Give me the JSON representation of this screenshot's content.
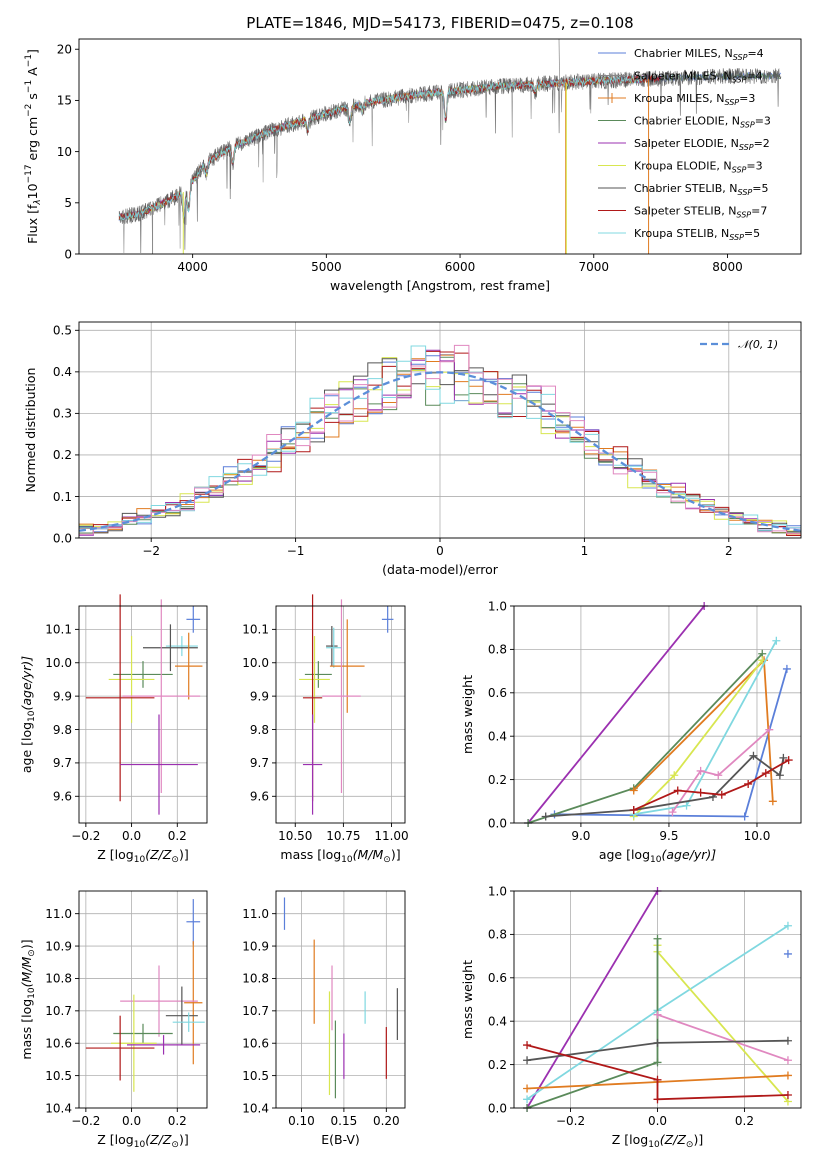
{
  "colors": {
    "chabrier_miles": "#5b7fd9",
    "salpeter_miles": "#888888",
    "kroupa_miles": "#e07b20",
    "chabrier_elodie": "#5a8a5a",
    "salpeter_elodie": "#9b30b0",
    "kroupa_elodie": "#d8e650",
    "chabrier_stelib": "#555555",
    "salpeter_stelib": "#b01818",
    "kroupa_stelib": "#80d8e0",
    "pink": "#e088c0",
    "normal": "#5b8fd9"
  },
  "chart_data": [
    {
      "id": "spectrum",
      "type": "line",
      "title": "PLATE=1846, MJD=54173, FIBERID=0475, z=0.108",
      "xlabel": "wavelength [Angstrom, rest frame]",
      "ylabel_parts": [
        "Flux [f",
        "λ",
        "10",
        "−17",
        " erg cm",
        "−2",
        " s",
        "−1",
        " A",
        "−1",
        "]"
      ],
      "xlim": [
        3150,
        8550
      ],
      "ylim": [
        0,
        21
      ],
      "xticks": [
        "4000",
        "5000",
        "6000",
        "7000",
        "8000"
      ],
      "xtick_values": [
        4000,
        5000,
        6000,
        7000,
        8000
      ],
      "yticks": [
        "0",
        "5",
        "10",
        "15",
        "20"
      ],
      "ytick_values": [
        0,
        5,
        10,
        15,
        20
      ],
      "grid": false,
      "legend_position": "top-right",
      "continuum_x": [
        3450,
        3600,
        3800,
        3950,
        4100,
        4300,
        4600,
        5000,
        5300,
        5700,
        6000,
        6300,
        6600,
        7000,
        7400,
        7800,
        8100,
        8300
      ],
      "continuum_y": [
        3.6,
        3.9,
        5.1,
        6.2,
        9.0,
        10.5,
        12.1,
        13.7,
        14.8,
        15.6,
        16.0,
        16.4,
        16.6,
        16.9,
        17.1,
        17.3,
        17.4,
        17.4
      ],
      "series": [
        {
          "name": "Chabrier MILES",
          "nssp": "4",
          "color_key": "chabrier_miles",
          "marker": false
        },
        {
          "name": "Salpeter MILES",
          "nssp": "4",
          "color_key": "salpeter_miles",
          "marker": false
        },
        {
          "name": "Kroupa MILES",
          "nssp": "3",
          "color_key": "kroupa_miles",
          "marker": true
        },
        {
          "name": "Chabrier ELODIE",
          "nssp": "3",
          "color_key": "chabrier_elodie",
          "marker": false
        },
        {
          "name": "Salpeter ELODIE",
          "nssp": "2",
          "color_key": "salpeter_elodie",
          "marker": false
        },
        {
          "name": "Kroupa ELODIE",
          "nssp": "3",
          "color_key": "kroupa_elodie",
          "marker": false
        },
        {
          "name": "Chabrier STELIB",
          "nssp": "5",
          "color_key": "chabrier_stelib",
          "marker": false
        },
        {
          "name": "Salpeter STELIB",
          "nssp": "7",
          "color_key": "salpeter_stelib",
          "marker": false
        },
        {
          "name": "Kroupa STELIB",
          "nssp": "5",
          "color_key": "kroupa_stelib",
          "marker": false
        }
      ]
    },
    {
      "id": "residuals",
      "type": "histogram",
      "xlabel": "(data-model)/error",
      "ylabel": "Normed distribution",
      "xlim": [
        -2.5,
        2.5
      ],
      "ylim": [
        0,
        0.52
      ],
      "xticks": [
        "−2",
        "−1",
        "0",
        "1",
        "2"
      ],
      "xtick_values": [
        -2,
        -1,
        0,
        1,
        2
      ],
      "yticks": [
        "0.0",
        "0.1",
        "0.2",
        "0.3",
        "0.4",
        "0.5"
      ],
      "ytick_values": [
        0,
        0.1,
        0.2,
        0.3,
        0.4,
        0.5
      ],
      "grid": true,
      "legend_position": "top-right",
      "legend": [
        {
          "label": "𝒩(0, 1)",
          "color_key": "normal"
        }
      ],
      "bin_width": 0.1,
      "hist_color_keys": [
        "chabrier_miles",
        "kroupa_miles",
        "chabrier_elodie",
        "salpeter_elodie",
        "kroupa_elodie",
        "chabrier_stelib",
        "salpeter_stelib",
        "kroupa_stelib",
        "pink"
      ]
    },
    {
      "id": "age-vs-z",
      "type": "errorbar",
      "xlabel_parts": [
        "Z [log",
        "10",
        "(Z/Z",
        "⊙",
        ")]"
      ],
      "ylabel_parts": [
        "age  [log",
        "10",
        "(age/yr)]"
      ],
      "xlim": [
        -0.23,
        0.33
      ],
      "ylim": [
        9.52,
        10.17
      ],
      "xticks": [
        "−0.2",
        "0.0",
        "0.2"
      ],
      "xtick_values": [
        -0.2,
        0.0,
        0.2
      ],
      "yticks": [
        "9.6",
        "9.7",
        "9.8",
        "9.9",
        "10.0",
        "10.1"
      ],
      "ytick_values": [
        9.6,
        9.7,
        9.8,
        9.9,
        10.0,
        10.1
      ],
      "grid": true,
      "points": [
        {
          "x": 0.27,
          "y": 10.13,
          "xerr": 0.03,
          "yerr": 0.04,
          "color_key": "chabrier_miles"
        },
        {
          "x": 0.22,
          "y": 10.05,
          "xerr": 0.07,
          "yerr": 0.03,
          "color_key": "kroupa_stelib"
        },
        {
          "x": 0.17,
          "y": 10.045,
          "xerr": 0.12,
          "yerr": 0.07,
          "color_key": "chabrier_stelib"
        },
        {
          "x": 0.25,
          "y": 9.99,
          "xerr": 0.06,
          "yerr": 0.1,
          "color_key": "kroupa_miles"
        },
        {
          "x": 0.05,
          "y": 9.965,
          "xerr": 0.13,
          "yerr": 0.04,
          "color_key": "chabrier_elodie"
        },
        {
          "x": 0.0,
          "y": 9.95,
          "xerr": 0.1,
          "yerr": 0.13,
          "color_key": "kroupa_elodie"
        },
        {
          "x": 0.13,
          "y": 9.9,
          "xerr": 0.17,
          "yerr": 0.29,
          "color_key": "pink"
        },
        {
          "x": -0.05,
          "y": 9.895,
          "xerr": 0.15,
          "yerr": 0.31,
          "color_key": "salpeter_stelib"
        },
        {
          "x": 0.12,
          "y": 9.695,
          "xerr": 0.17,
          "yerr": 0.15,
          "color_key": "salpeter_elodie"
        }
      ]
    },
    {
      "id": "age-vs-mass",
      "type": "errorbar",
      "xlabel_parts": [
        "mass [log",
        "10",
        "(M/M",
        "⊙",
        ")]"
      ],
      "xlim": [
        10.4,
        11.07
      ],
      "ylim": [
        9.52,
        10.17
      ],
      "xticks": [
        "10.50",
        "10.75",
        "11.00"
      ],
      "xtick_values": [
        10.5,
        10.75,
        11.0
      ],
      "yticks": [
        "9.6",
        "9.7",
        "9.8",
        "9.9",
        "10.0",
        "10.1"
      ],
      "ytick_values": [
        9.6,
        9.7,
        9.8,
        9.9,
        10.0,
        10.1
      ],
      "grid": true,
      "points": [
        {
          "x": 10.98,
          "y": 10.13,
          "xerr": 0.03,
          "yerr": 0.04,
          "color_key": "chabrier_miles"
        },
        {
          "x": 10.69,
          "y": 10.05,
          "xerr": 0.03,
          "yerr": 0.06,
          "color_key": "chabrier_stelib"
        },
        {
          "x": 10.7,
          "y": 10.045,
          "xerr": 0.04,
          "yerr": 0.06,
          "color_key": "kroupa_stelib"
        },
        {
          "x": 10.77,
          "y": 9.99,
          "xerr": 0.09,
          "yerr": 0.14,
          "color_key": "kroupa_miles"
        },
        {
          "x": 10.62,
          "y": 9.965,
          "xerr": 0.07,
          "yerr": 0.04,
          "color_key": "chabrier_elodie"
        },
        {
          "x": 10.6,
          "y": 9.95,
          "xerr": 0.08,
          "yerr": 0.13,
          "color_key": "kroupa_elodie"
        },
        {
          "x": 10.74,
          "y": 9.9,
          "xerr": 0.1,
          "yerr": 0.29,
          "color_key": "pink"
        },
        {
          "x": 10.59,
          "y": 9.895,
          "xerr": 0.05,
          "yerr": 0.31,
          "color_key": "salpeter_stelib"
        },
        {
          "x": 10.59,
          "y": 9.695,
          "xerr": 0.05,
          "yerr": 0.15,
          "color_key": "salpeter_elodie"
        }
      ]
    },
    {
      "id": "weight-vs-age",
      "type": "line",
      "xlabel_parts": [
        "age  [log",
        "10",
        "(age/yr)]"
      ],
      "ylabel": "mass weight",
      "xlim": [
        8.62,
        10.25
      ],
      "ylim": [
        0,
        1
      ],
      "xticks": [
        "9.0",
        "9.5",
        "10.0"
      ],
      "xtick_values": [
        9.0,
        9.5,
        10.0
      ],
      "yticks": [
        "0.0",
        "0.2",
        "0.4",
        "0.6",
        "0.8",
        "1.0"
      ],
      "ytick_values": [
        0,
        0.2,
        0.4,
        0.6,
        0.8,
        1.0
      ],
      "grid": true,
      "series": [
        {
          "color_key": "salpeter_elodie",
          "x": [
            8.7,
            9.7
          ],
          "y": [
            0.0,
            1.0
          ]
        },
        {
          "color_key": "chabrier_miles",
          "x": [
            8.85,
            9.93,
            10.17
          ],
          "y": [
            0.04,
            0.03,
            0.71
          ]
        },
        {
          "color_key": "chabrier_elodie",
          "x": [
            8.7,
            9.3,
            10.03
          ],
          "y": [
            0.0,
            0.16,
            0.78
          ]
        },
        {
          "color_key": "kroupa_miles",
          "x": [
            9.3,
            10.04,
            10.09
          ],
          "y": [
            0.15,
            0.75,
            0.1
          ]
        },
        {
          "color_key": "kroupa_elodie",
          "x": [
            9.3,
            9.53,
            10.03
          ],
          "y": [
            0.03,
            0.22,
            0.75
          ]
        },
        {
          "color_key": "kroupa_stelib",
          "x": [
            9.3,
            9.6,
            10.11
          ],
          "y": [
            0.04,
            0.08,
            0.84
          ]
        },
        {
          "color_key": "pink",
          "x": [
            9.52,
            9.68,
            9.78,
            10.07
          ],
          "y": [
            0.05,
            0.24,
            0.22,
            0.43
          ]
        },
        {
          "color_key": "chabrier_stelib",
          "x": [
            8.8,
            9.3,
            9.75,
            9.98,
            10.13,
            10.15
          ],
          "y": [
            0.03,
            0.06,
            0.12,
            0.31,
            0.22,
            0.3
          ]
        },
        {
          "color_key": "salpeter_stelib",
          "x": [
            9.3,
            9.55,
            9.68,
            9.8,
            9.95,
            10.05,
            10.18
          ],
          "y": [
            0.06,
            0.15,
            0.14,
            0.13,
            0.18,
            0.23,
            0.29
          ]
        }
      ]
    },
    {
      "id": "mass-vs-z",
      "type": "errorbar",
      "xlabel_parts": [
        "Z [log",
        "10",
        "(Z/Z",
        "⊙",
        ")]"
      ],
      "ylabel_parts": [
        "mass [log",
        "10",
        "(M/M",
        "⊙",
        ")]"
      ],
      "xlim": [
        -0.23,
        0.33
      ],
      "ylim": [
        10.4,
        11.07
      ],
      "xticks": [
        "−0.2",
        "0.0",
        "0.2"
      ],
      "xtick_values": [
        -0.2,
        0.0,
        0.2
      ],
      "yticks": [
        "10.4",
        "10.5",
        "10.6",
        "10.7",
        "10.8",
        "10.9",
        "11.0"
      ],
      "ytick_values": [
        10.4,
        10.5,
        10.6,
        10.7,
        10.8,
        10.9,
        11.0
      ],
      "grid": true,
      "points": [
        {
          "x": 0.27,
          "y": 10.975,
          "xerr": 0.03,
          "yerr": 0.07,
          "color_key": "chabrier_miles"
        },
        {
          "x": 0.27,
          "y": 10.725,
          "xerr": 0.04,
          "yerr": 0.19,
          "color_key": "kroupa_miles"
        },
        {
          "x": 0.12,
          "y": 10.73,
          "xerr": 0.17,
          "yerr": 0.11,
          "color_key": "pink"
        },
        {
          "x": 0.22,
          "y": 10.685,
          "xerr": 0.07,
          "yerr": 0.09,
          "color_key": "chabrier_stelib"
        },
        {
          "x": 0.25,
          "y": 10.665,
          "xerr": 0.07,
          "yerr": 0.03,
          "color_key": "kroupa_stelib"
        },
        {
          "x": 0.05,
          "y": 10.63,
          "xerr": 0.13,
          "yerr": 0.03,
          "color_key": "chabrier_elodie"
        },
        {
          "x": 0.01,
          "y": 10.6,
          "xerr": 0.1,
          "yerr": 0.15,
          "color_key": "kroupa_elodie"
        },
        {
          "x": 0.14,
          "y": 10.595,
          "xerr": 0.16,
          "yerr": 0.03,
          "color_key": "salpeter_elodie"
        },
        {
          "x": -0.05,
          "y": 10.585,
          "xerr": 0.15,
          "yerr": 0.1,
          "color_key": "salpeter_stelib"
        }
      ]
    },
    {
      "id": "mass-vs-ebv",
      "type": "errorbar",
      "xlabel": "E(B-V)",
      "xlim": [
        0.07,
        0.222
      ],
      "ylim": [
        10.4,
        11.07
      ],
      "xticks": [
        "0.10",
        "0.15",
        "0.20"
      ],
      "xtick_values": [
        0.1,
        0.15,
        0.2
      ],
      "yticks": [
        "10.4",
        "10.5",
        "10.6",
        "10.7",
        "10.8",
        "10.9",
        "11.0"
      ],
      "ytick_values": [
        10.4,
        10.5,
        10.6,
        10.7,
        10.8,
        10.9,
        11.0
      ],
      "grid": true,
      "points": [
        {
          "x": 0.08,
          "y": 11.0,
          "xerr": 0,
          "yerr": 0.05,
          "color_key": "chabrier_miles"
        },
        {
          "x": 0.115,
          "y": 10.79,
          "xerr": 0,
          "yerr": 0.13,
          "color_key": "kroupa_miles"
        },
        {
          "x": 0.133,
          "y": 10.6,
          "xerr": 0,
          "yerr": 0.16,
          "color_key": "kroupa_elodie"
        },
        {
          "x": 0.136,
          "y": 10.74,
          "xerr": 0,
          "yerr": 0.1,
          "color_key": "pink"
        },
        {
          "x": 0.14,
          "y": 10.55,
          "xerr": 0,
          "yerr": 0.12,
          "color_key": "chabrier_elodie"
        },
        {
          "x": 0.15,
          "y": 10.56,
          "xerr": 0,
          "yerr": 0.07,
          "color_key": "salpeter_elodie"
        },
        {
          "x": 0.175,
          "y": 10.71,
          "xerr": 0,
          "yerr": 0.05,
          "color_key": "kroupa_stelib"
        },
        {
          "x": 0.2,
          "y": 10.57,
          "xerr": 0,
          "yerr": 0.08,
          "color_key": "salpeter_stelib"
        },
        {
          "x": 0.213,
          "y": 10.69,
          "xerr": 0,
          "yerr": 0.08,
          "color_key": "chabrier_stelib"
        }
      ]
    },
    {
      "id": "weight-vs-z",
      "type": "line",
      "xlabel_parts": [
        "Z [log",
        "10",
        "(Z/Z",
        "⊙",
        ")]"
      ],
      "ylabel": "mass weight",
      "xlim": [
        -0.33,
        0.33
      ],
      "ylim": [
        0,
        1
      ],
      "xticks": [
        "−0.2",
        "0.0",
        "0.2"
      ],
      "xtick_values": [
        -0.2,
        0.0,
        0.2
      ],
      "yticks": [
        "0.0",
        "0.2",
        "0.4",
        "0.6",
        "0.8",
        "1.0"
      ],
      "ytick_values": [
        0,
        0.2,
        0.4,
        0.6,
        0.8,
        1.0
      ],
      "grid": true,
      "series": [
        {
          "color_key": "salpeter_elodie",
          "x": [
            -0.3,
            0.0
          ],
          "y": [
            0.0,
            1.0
          ]
        },
        {
          "color_key": "kroupa_stelib",
          "x": [
            -0.3,
            0.0,
            0.3
          ],
          "y": [
            0.04,
            0.45,
            0.84
          ]
        },
        {
          "color_key": "kroupa_elodie",
          "x": [
            0.0,
            0.0,
            0.3
          ],
          "y": [
            0.75,
            0.72,
            0.03
          ]
        },
        {
          "color_key": "chabrier_elodie",
          "x": [
            -0.3,
            0.0,
            0.0
          ],
          "y": [
            0.0,
            0.21,
            0.78
          ]
        },
        {
          "color_key": "pink",
          "x": [
            0.0,
            0.3
          ],
          "y": [
            0.43,
            0.22
          ]
        },
        {
          "color_key": "chabrier_stelib",
          "x": [
            -0.3,
            0.0,
            0.3
          ],
          "y": [
            0.22,
            0.3,
            0.31
          ]
        },
        {
          "color_key": "kroupa_miles",
          "x": [
            -0.3,
            0.0,
            0.3
          ],
          "y": [
            0.09,
            0.12,
            0.15
          ]
        },
        {
          "color_key": "salpeter_stelib",
          "x": [
            -0.3,
            0.0,
            0.0,
            0.3
          ],
          "y": [
            0.29,
            0.13,
            0.04,
            0.06
          ]
        },
        {
          "color_key": "chabrier_miles",
          "x": [
            0.3
          ],
          "y": [
            0.71
          ]
        }
      ]
    }
  ]
}
